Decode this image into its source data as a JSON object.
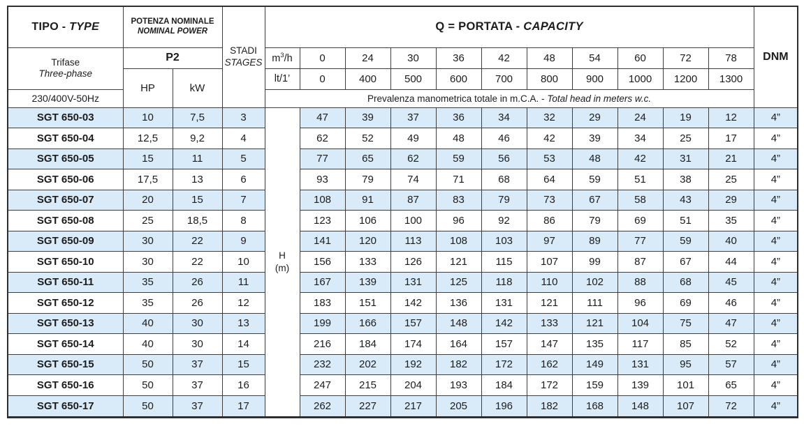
{
  "colors": {
    "row_alt_blue": "#d9ebf8",
    "border": "#3e3e3e",
    "text": "#1c1c1c"
  },
  "header": {
    "tipo_roman": "TIPO - ",
    "tipo_italic": "TYPE",
    "potenza_line1": "POTENZA NOMINALE",
    "potenza_line2": "NOMINAL POWER",
    "trifase": "Trifase",
    "three_phase": "Three-phase",
    "voltage": "230/400V-50Hz",
    "p2": "P2",
    "hp": "HP",
    "kw": "kW",
    "stadi": "STADI",
    "stages": "STAGES",
    "q_title_roman": "Q = PORTATA - ",
    "q_title_italic": "CAPACITY",
    "m3h": {
      "base": "m",
      "sup": "3",
      "rest": "/h"
    },
    "lt_label": "lt/1’",
    "prevalenza_roman": "Prevalenza manometrica totale in m.C.A. - ",
    "prevalenza_italic": "Total head in meters w.c.",
    "dnm": "DNM",
    "h_label": {
      "line1": "H",
      "line2": "(m)"
    }
  },
  "capacity_m3h": [
    "0",
    "24",
    "30",
    "36",
    "42",
    "48",
    "54",
    "60",
    "72",
    "78"
  ],
  "capacity_lt": [
    "0",
    "400",
    "500",
    "600",
    "700",
    "800",
    "900",
    "1000",
    "1200",
    "1300"
  ],
  "rows": [
    {
      "model": "SGT 650-03",
      "hp": "10",
      "kw": "7,5",
      "stages": "3",
      "heads": [
        "47",
        "39",
        "37",
        "36",
        "34",
        "32",
        "29",
        "24",
        "19",
        "12"
      ],
      "dnm": "4”"
    },
    {
      "model": "SGT 650-04",
      "hp": "12,5",
      "kw": "9,2",
      "stages": "4",
      "heads": [
        "62",
        "52",
        "49",
        "48",
        "46",
        "42",
        "39",
        "34",
        "25",
        "17"
      ],
      "dnm": "4”"
    },
    {
      "model": "SGT 650-05",
      "hp": "15",
      "kw": "11",
      "stages": "5",
      "heads": [
        "77",
        "65",
        "62",
        "59",
        "56",
        "53",
        "48",
        "42",
        "31",
        "21"
      ],
      "dnm": "4”"
    },
    {
      "model": "SGT 650-06",
      "hp": "17,5",
      "kw": "13",
      "stages": "6",
      "heads": [
        "93",
        "79",
        "74",
        "71",
        "68",
        "64",
        "59",
        "51",
        "38",
        "25"
      ],
      "dnm": "4”"
    },
    {
      "model": "SGT 650-07",
      "hp": "20",
      "kw": "15",
      "stages": "7",
      "heads": [
        "108",
        "91",
        "87",
        "83",
        "79",
        "73",
        "67",
        "58",
        "43",
        "29"
      ],
      "dnm": "4”"
    },
    {
      "model": "SGT 650-08",
      "hp": "25",
      "kw": "18,5",
      "stages": "8",
      "heads": [
        "123",
        "106",
        "100",
        "96",
        "92",
        "86",
        "79",
        "69",
        "51",
        "35"
      ],
      "dnm": "4”"
    },
    {
      "model": "SGT 650-09",
      "hp": "30",
      "kw": "22",
      "stages": "9",
      "heads": [
        "141",
        "120",
        "113",
        "108",
        "103",
        "97",
        "89",
        "77",
        "59",
        "40"
      ],
      "dnm": "4”"
    },
    {
      "model": "SGT 650-10",
      "hp": "30",
      "kw": "22",
      "stages": "10",
      "heads": [
        "156",
        "133",
        "126",
        "121",
        "115",
        "107",
        "99",
        "87",
        "67",
        "44"
      ],
      "dnm": "4”"
    },
    {
      "model": "SGT 650-11",
      "hp": "35",
      "kw": "26",
      "stages": "11",
      "heads": [
        "167",
        "139",
        "131",
        "125",
        "118",
        "110",
        "102",
        "88",
        "68",
        "45"
      ],
      "dnm": "4”"
    },
    {
      "model": "SGT 650-12",
      "hp": "35",
      "kw": "26",
      "stages": "12",
      "heads": [
        "183",
        "151",
        "142",
        "136",
        "131",
        "121",
        "111",
        "96",
        "69",
        "46"
      ],
      "dnm": "4”"
    },
    {
      "model": "SGT 650-13",
      "hp": "40",
      "kw": "30",
      "stages": "13",
      "heads": [
        "199",
        "166",
        "157",
        "148",
        "142",
        "133",
        "121",
        "104",
        "75",
        "47"
      ],
      "dnm": "4”"
    },
    {
      "model": "SGT 650-14",
      "hp": "40",
      "kw": "30",
      "stages": "14",
      "heads": [
        "216",
        "184",
        "174",
        "164",
        "157",
        "147",
        "135",
        "117",
        "85",
        "52"
      ],
      "dnm": "4”"
    },
    {
      "model": "SGT 650-15",
      "hp": "50",
      "kw": "37",
      "stages": "15",
      "heads": [
        "232",
        "202",
        "192",
        "182",
        "172",
        "162",
        "149",
        "131",
        "95",
        "57"
      ],
      "dnm": "4”"
    },
    {
      "model": "SGT 650-16",
      "hp": "50",
      "kw": "37",
      "stages": "16",
      "heads": [
        "247",
        "215",
        "204",
        "193",
        "184",
        "172",
        "159",
        "139",
        "101",
        "65"
      ],
      "dnm": "4”"
    },
    {
      "model": "SGT 650-17",
      "hp": "50",
      "kw": "37",
      "stages": "17",
      "heads": [
        "262",
        "227",
        "217",
        "205",
        "196",
        "182",
        "168",
        "148",
        "107",
        "72"
      ],
      "dnm": "4”"
    }
  ]
}
